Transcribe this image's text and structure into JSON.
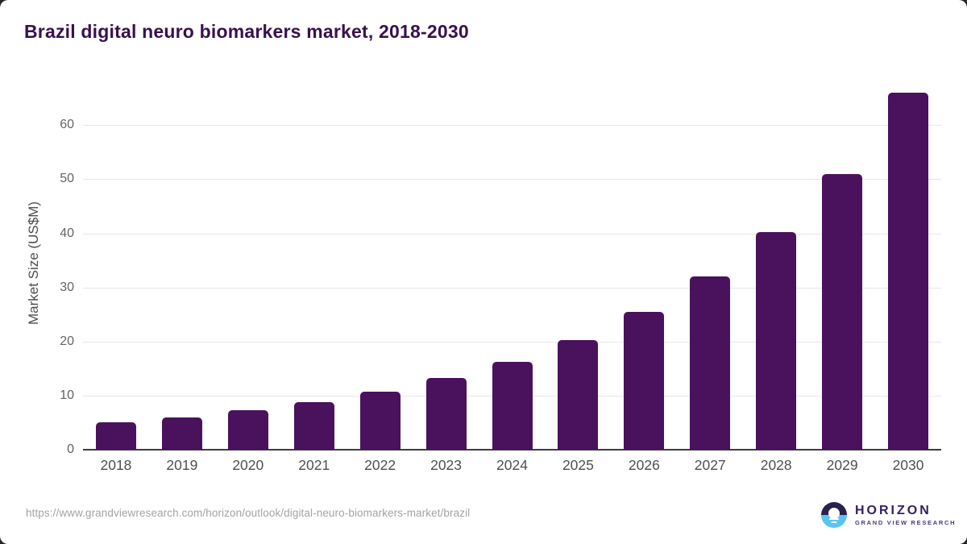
{
  "page": {
    "title": "Brazil digital neuro biomarkers market, 2018-2030"
  },
  "chart_data": {
    "type": "bar",
    "title": "Brazil digital neuro biomarkers market, 2018-2030",
    "categories": [
      "2018",
      "2019",
      "2020",
      "2021",
      "2022",
      "2023",
      "2024",
      "2025",
      "2026",
      "2027",
      "2028",
      "2029",
      "2030"
    ],
    "values": [
      5.1,
      6.0,
      7.3,
      8.8,
      10.7,
      13.2,
      16.2,
      20.3,
      25.5,
      32.0,
      40.2,
      51.0,
      66.0
    ],
    "xlabel": "",
    "ylabel": "Market Size (US$M)",
    "yticks": [
      0,
      10,
      20,
      30,
      40,
      50,
      60
    ],
    "ylim": [
      0,
      69
    ],
    "grid": true,
    "legend": "none",
    "bar_color": "#4a115c"
  },
  "footer": {
    "source_url": "https://www.grandviewresearch.com/horizon/outlook/digital-neuro-biomarkers-market/brazil",
    "brand_name": "HORIZON",
    "brand_subtitle": "GRAND VIEW RESEARCH"
  },
  "colors": {
    "title_purple": "#38104e",
    "bar_purple": "#4a115c",
    "grid_gray": "#e8e8e8",
    "axis_dark": "#3d3d3d",
    "tick_gray": "#4f4f4f",
    "url_gray": "#a3a3a3",
    "logo_navy": "#2b2150",
    "logo_blue": "#5ac4f0"
  }
}
